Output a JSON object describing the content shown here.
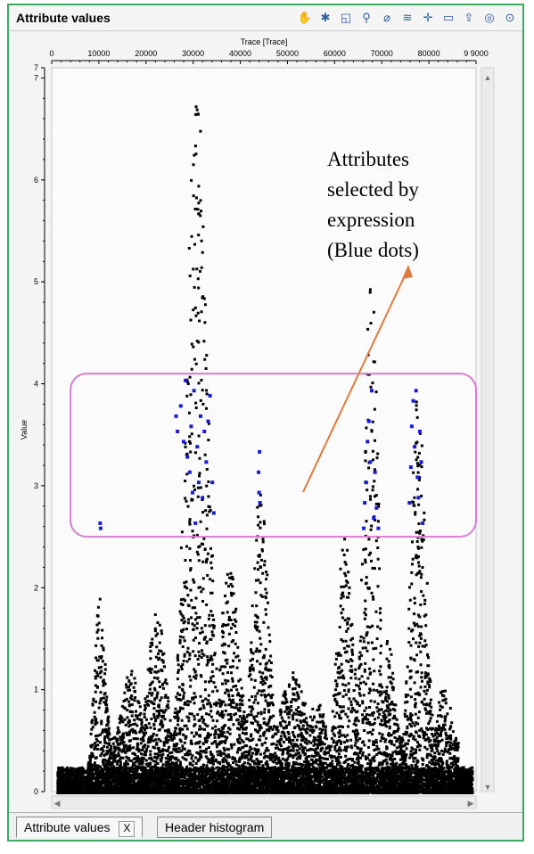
{
  "window": {
    "title": "Attribute values"
  },
  "toolbar": {
    "icons": [
      "hand-icon",
      "settings-icon",
      "zoom-box-icon",
      "zoom-icon",
      "select-icon",
      "layers-icon",
      "crosshair-icon",
      "comment-icon",
      "export-icon",
      "magnify-icon",
      "compass-icon"
    ]
  },
  "tabs": [
    {
      "label": "Attribute values",
      "close": "X"
    },
    {
      "label": "Header histogram"
    }
  ],
  "annotation": {
    "lines": [
      "Attributes",
      "selected by",
      "expression",
      "(Blue dots)"
    ]
  },
  "colors": {
    "selected": "#1a1adc",
    "points": "#000000",
    "highlight_box": "#d67fd0",
    "arrow": "#e07a3c",
    "window_border": "#3da860"
  },
  "chart_data": {
    "type": "scatter",
    "xlabel": "Trace [Trace]",
    "ylabel": "Value",
    "xlim": [
      0,
      90000
    ],
    "ylim": [
      0,
      7.1
    ],
    "x_ticks": [
      "0",
      "10000",
      "20000",
      "30000",
      "40000",
      "50000",
      "60000",
      "70000",
      "80000",
      "9 9000"
    ],
    "y_ticks": [
      "0",
      "1",
      "2",
      "3",
      "4",
      "5",
      "5",
      "6",
      "7",
      "7"
    ],
    "selection_range": [
      2.5,
      4.1
    ],
    "series": [
      {
        "name": "Blue dots",
        "color": "#1a1adc",
        "points": [
          [
            9900,
            2.65
          ],
          [
            10000,
            2.6
          ],
          [
            26000,
            3.7
          ],
          [
            26300,
            3.55
          ],
          [
            27000,
            3.8
          ],
          [
            27600,
            3.45
          ],
          [
            28000,
            4.05
          ],
          [
            28400,
            3.3
          ],
          [
            28900,
            3.15
          ],
          [
            29200,
            3.6
          ],
          [
            29500,
            2.95
          ],
          [
            29800,
            3.95
          ],
          [
            30100,
            2.65
          ],
          [
            30500,
            3.4
          ],
          [
            30800,
            3.05
          ],
          [
            31200,
            3.7
          ],
          [
            31600,
            2.9
          ],
          [
            32000,
            3.55
          ],
          [
            32400,
            3.25
          ],
          [
            32800,
            3.65
          ],
          [
            33200,
            3.9
          ],
          [
            33700,
            3.05
          ],
          [
            34000,
            2.75
          ],
          [
            43700,
            3.35
          ],
          [
            43500,
            3.15
          ],
          [
            43600,
            2.95
          ],
          [
            43800,
            2.85
          ],
          [
            65800,
            2.6
          ],
          [
            66000,
            2.85
          ],
          [
            66300,
            3.05
          ],
          [
            66600,
            3.45
          ],
          [
            66900,
            3.65
          ],
          [
            67200,
            3.25
          ],
          [
            67500,
            3.95
          ],
          [
            67900,
            2.7
          ],
          [
            68200,
            3.15
          ],
          [
            68500,
            2.8
          ],
          [
            68900,
            2.6
          ],
          [
            75500,
            2.85
          ],
          [
            75800,
            3.2
          ],
          [
            76000,
            3.6
          ],
          [
            76300,
            3.85
          ],
          [
            76600,
            3.4
          ],
          [
            76900,
            3.95
          ],
          [
            77200,
            3.1
          ],
          [
            77400,
            2.9
          ],
          [
            77700,
            3.55
          ],
          [
            78000,
            3.25
          ],
          [
            78300,
            2.65
          ]
        ]
      }
    ]
  }
}
